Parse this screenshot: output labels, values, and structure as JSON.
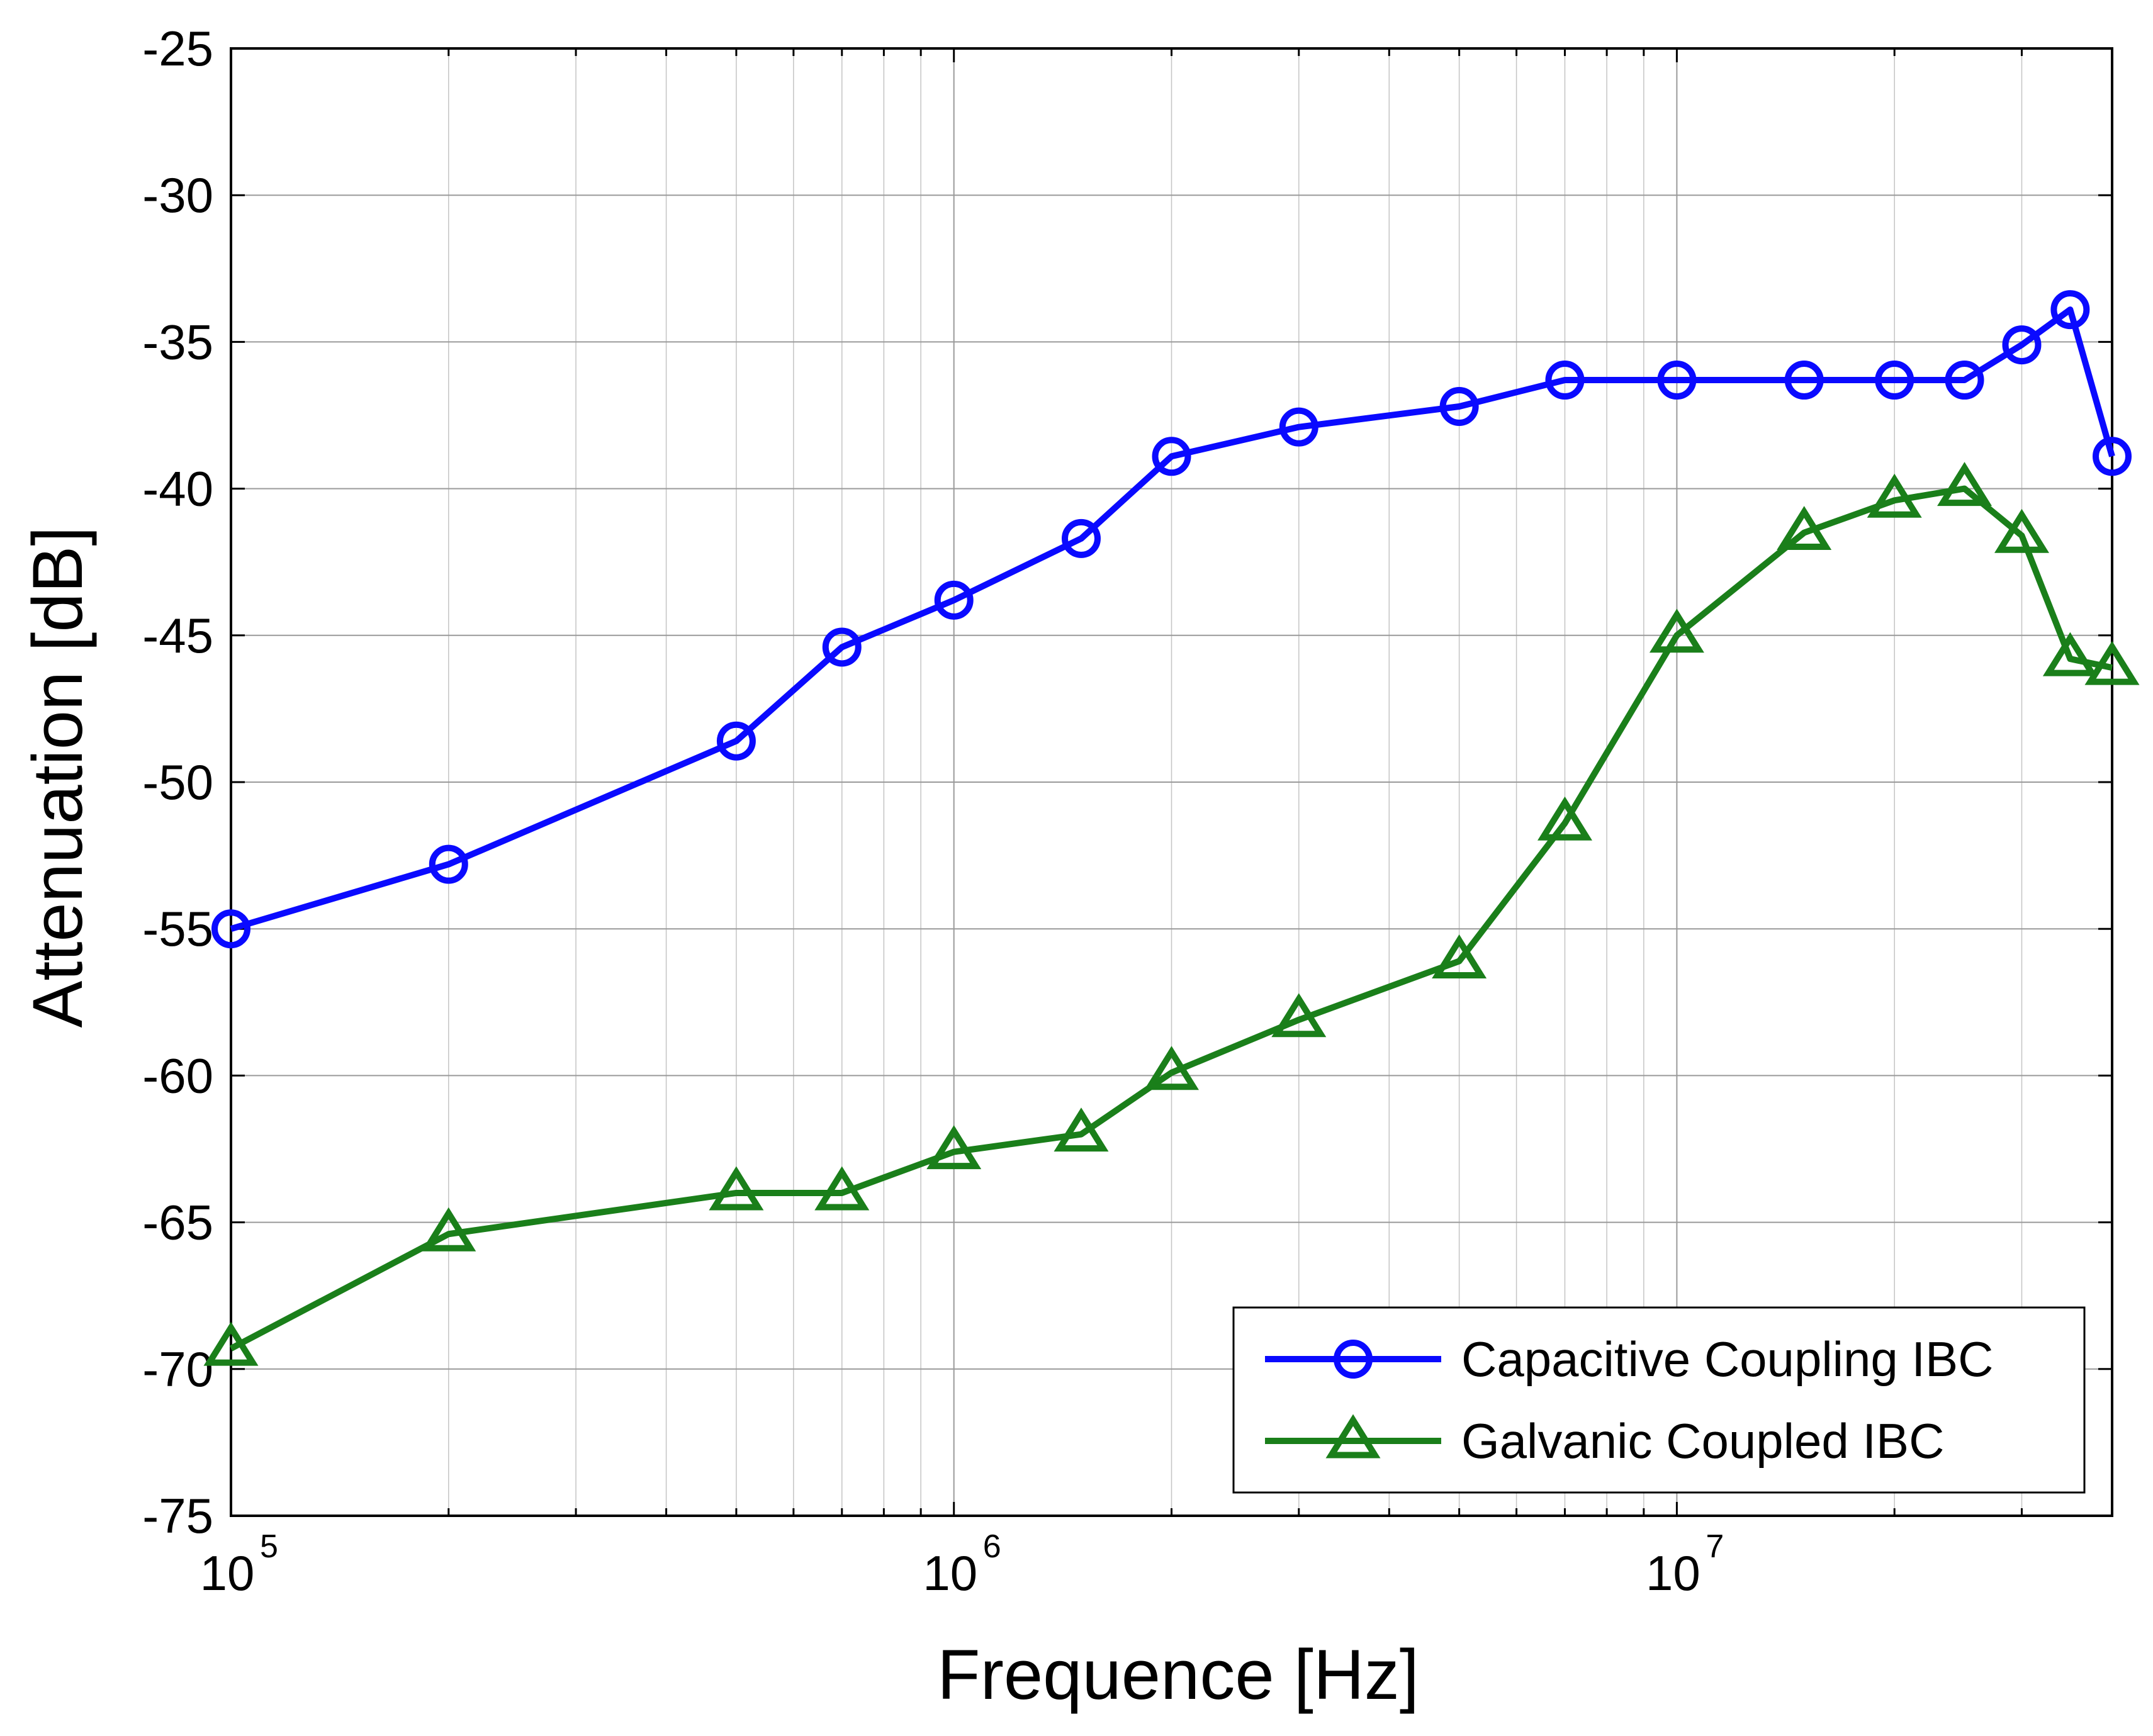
{
  "chart_data": {
    "type": "line",
    "xscale": "log",
    "xlabel": "Frequence [Hz]",
    "ylabel": "Attenuation [dB]",
    "xlim": [
      100000,
      40000000
    ],
    "ylim": [
      -75,
      -25
    ],
    "grid": true,
    "legend_position": "bottom-right",
    "yticks": [
      -75,
      -70,
      -65,
      -60,
      -55,
      -50,
      -45,
      -40,
      -35,
      -30,
      -25
    ],
    "xticks": [
      {
        "value": 100000,
        "base": "10",
        "exp": "5"
      },
      {
        "value": 1000000,
        "base": "10",
        "exp": "6"
      },
      {
        "value": 10000000,
        "base": "10",
        "exp": "7"
      }
    ],
    "series": [
      {
        "name": "Capacitive Coupling IBC",
        "color": "#0a0aff",
        "marker": "circle",
        "x": [
          100000,
          200000,
          500000,
          700000,
          1000000,
          1500000,
          2000000,
          3000000,
          5000000,
          7000000,
          10000000,
          15000000,
          20000000,
          25000000,
          30000000,
          35000000,
          40000000
        ],
        "y": [
          -55.0,
          -52.8,
          -48.6,
          -45.4,
          -43.8,
          -41.7,
          -38.9,
          -37.9,
          -37.2,
          -36.3,
          -36.3,
          -36.3,
          -36.3,
          -36.3,
          -35.1,
          -33.9,
          -38.9
        ]
      },
      {
        "name": "Galvanic Coupled IBC",
        "color": "#1a7f1a",
        "marker": "triangle",
        "x": [
          100000,
          200000,
          500000,
          700000,
          1000000,
          1500000,
          2000000,
          3000000,
          5000000,
          7000000,
          10000000,
          15000000,
          20000000,
          25000000,
          30000000,
          35000000,
          40000000
        ],
        "y": [
          -69.3,
          -65.4,
          -64.0,
          -64.0,
          -62.6,
          -62.0,
          -59.9,
          -58.1,
          -56.1,
          -51.4,
          -45.0,
          -41.5,
          -40.4,
          -40.0,
          -41.6,
          -45.8,
          -46.1
        ]
      }
    ]
  }
}
